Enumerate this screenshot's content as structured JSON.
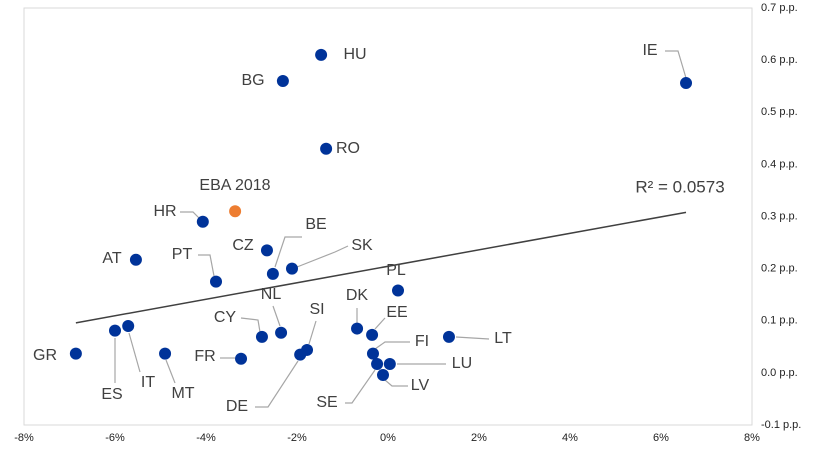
{
  "chart_data": {
    "type": "scatter",
    "labels": [
      "HU",
      "IE",
      "BG",
      "RO",
      "EBA 2018",
      "HR",
      "CZ",
      "BE",
      "SK",
      "AT",
      "PT",
      "PL",
      "NL",
      "CY",
      "DK",
      "EE",
      "LT",
      "GR",
      "ES",
      "IT",
      "MT",
      "FR",
      "SI",
      "DE",
      "FI",
      "LU",
      "SE",
      "LV"
    ],
    "x": [
      -1.47,
      6.55,
      -2.31,
      -1.36,
      -3.36,
      -4.07,
      -2.66,
      -2.53,
      -2.11,
      -5.54,
      -3.78,
      0.22,
      -2.35,
      -2.77,
      -0.68,
      -0.35,
      1.34,
      -6.86,
      -6.0,
      -5.71,
      -4.9,
      -3.23,
      -1.78,
      -1.93,
      -0.33,
      0.04,
      -0.24,
      -0.11
    ],
    "values": [
      0.61,
      0.556,
      0.56,
      0.43,
      0.31,
      0.29,
      0.235,
      0.19,
      0.2,
      0.217,
      0.175,
      0.158,
      0.077,
      0.069,
      0.085,
      0.073,
      0.069,
      0.037,
      0.081,
      0.09,
      0.037,
      0.027,
      0.044,
      0.035,
      0.037,
      0.017,
      0.017,
      -0.004
    ],
    "colors": [
      "#003399",
      "#003399",
      "#003399",
      "#003399",
      "#ed7d31",
      "#003399",
      "#003399",
      "#003399",
      "#003399",
      "#003399",
      "#003399",
      "#003399",
      "#003399",
      "#003399",
      "#003399",
      "#003399",
      "#003399",
      "#003399",
      "#003399",
      "#003399",
      "#003399",
      "#003399",
      "#003399",
      "#003399",
      "#003399",
      "#003399",
      "#003399",
      "#003399"
    ],
    "trendline": {
      "label": "R² = 0.0573",
      "x": [
        -6.86,
        6.55
      ],
      "values": [
        0.096,
        0.308
      ],
      "color": "#404040"
    },
    "xlim": [
      -8,
      8
    ],
    "ylim": [
      -0.1,
      0.7
    ],
    "xticks": [
      {
        "value": -8,
        "label": "-8%"
      },
      {
        "value": -6,
        "label": "-6%"
      },
      {
        "value": -4,
        "label": "-4%"
      },
      {
        "value": -2,
        "label": "-2%"
      },
      {
        "value": 0,
        "label": "0%"
      },
      {
        "value": 2,
        "label": "2%"
      },
      {
        "value": 4,
        "label": "4%"
      },
      {
        "value": 6,
        "label": "6%"
      },
      {
        "value": 8,
        "label": "8%"
      }
    ],
    "yticks": [
      {
        "value": -0.1,
        "label": "-0.1 p.p."
      },
      {
        "value": 0,
        "label": "0.0 p.p."
      },
      {
        "value": 0.1,
        "label": "0.1 p.p."
      },
      {
        "value": 0.2,
        "label": "0.2 p.p."
      },
      {
        "value": 0.3,
        "label": "0.3 p.p."
      },
      {
        "value": 0.4,
        "label": "0.4 p.p."
      },
      {
        "value": 0.5,
        "label": "0.5 p.p."
      },
      {
        "value": 0.6,
        "label": "0.6 p.p."
      },
      {
        "value": 0.7,
        "label": "0.7 p.p."
      }
    ],
    "grid": false
  }
}
